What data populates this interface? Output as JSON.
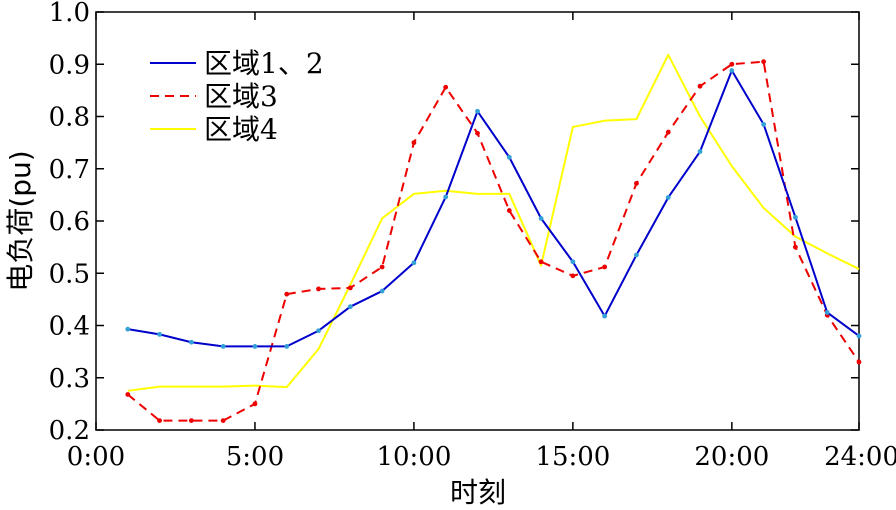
{
  "chart_data": {
    "type": "line",
    "title": "",
    "xlabel": "时刻",
    "ylabel": "电负荷(pu)",
    "xlim": [
      0,
      24
    ],
    "ylim": [
      0.2,
      1.0
    ],
    "x_ticks": [
      0,
      5,
      10,
      15,
      20,
      24
    ],
    "x_tick_labels": [
      "0:00",
      "5:00",
      "10:00",
      "15:00",
      "20:00",
      "24:00"
    ],
    "y_ticks": [
      0.2,
      0.3,
      0.4,
      0.5,
      0.6,
      0.7,
      0.8,
      0.9,
      1.0
    ],
    "y_tick_labels": [
      "0.2",
      "0.3",
      "0.4",
      "0.5",
      "0.6",
      "0.7",
      "0.8",
      "0.9",
      "1.0"
    ],
    "grid": false,
    "legend_position": "top-left",
    "x": [
      1,
      2,
      3,
      4,
      5,
      6,
      7,
      8,
      9,
      10,
      11,
      12,
      13,
      14,
      15,
      16,
      17,
      18,
      19,
      20,
      21,
      22,
      23,
      24
    ],
    "series": [
      {
        "name": "区域1、2",
        "color": "#0000cc",
        "style": "solid",
        "markers": true,
        "values": [
          0.393,
          0.383,
          0.368,
          0.36,
          0.36,
          0.36,
          0.39,
          0.436,
          0.466,
          0.52,
          0.646,
          0.81,
          0.722,
          0.605,
          0.522,
          0.418,
          0.535,
          0.645,
          0.733,
          0.888,
          0.785,
          0.607,
          0.425,
          0.38
        ]
      },
      {
        "name": "区域3",
        "color": "#ee0000",
        "style": "dashed",
        "markers": true,
        "values": [
          0.268,
          0.218,
          0.218,
          0.218,
          0.25,
          0.46,
          0.47,
          0.472,
          0.512,
          0.75,
          0.856,
          0.768,
          0.62,
          0.522,
          0.495,
          0.512,
          0.672,
          0.77,
          0.858,
          0.9,
          0.905,
          0.55,
          0.42,
          0.33
        ]
      },
      {
        "name": "区域4",
        "color": "#ffff00",
        "style": "solid",
        "markers": false,
        "values": [
          0.275,
          0.283,
          0.283,
          0.283,
          0.285,
          0.282,
          0.355,
          0.478,
          0.605,
          0.652,
          0.658,
          0.652,
          0.652,
          0.515,
          0.78,
          0.792,
          0.795,
          0.918,
          0.8,
          0.705,
          0.625,
          0.57,
          0.538,
          0.508
        ]
      }
    ]
  }
}
